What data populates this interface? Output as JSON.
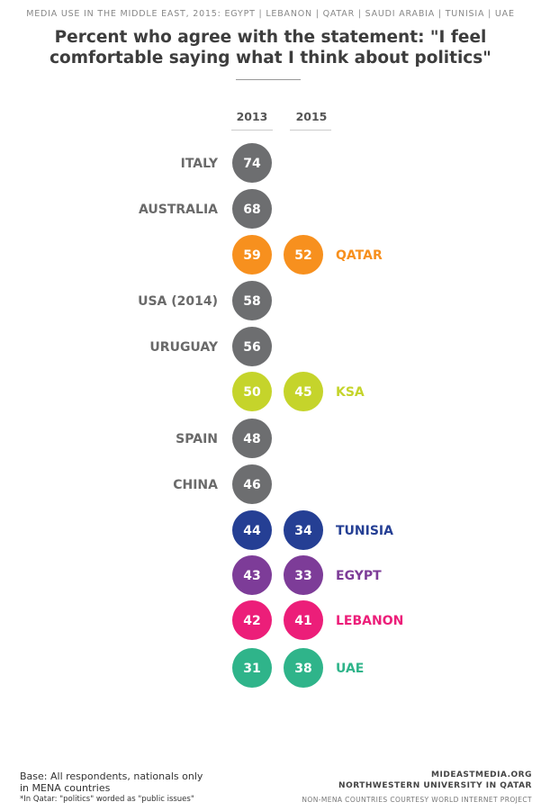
{
  "header": {
    "context": "MEDIA USE IN THE MIDDLE EAST, 2015: EGYPT | LEBANON | QATAR | SAUDI ARABIA | TUNISIA | UAE",
    "title_line1": "Percent who agree with the statement: \"I feel",
    "title_line2": "comfortable saying what I think about politics\""
  },
  "columns": [
    "2013",
    "2015"
  ],
  "colors": {
    "gray": "#6d6e70",
    "orange": "#f7901e",
    "lime": "#c5d42b",
    "navy": "#253f94",
    "purple": "#7d3c98",
    "pink": "#ec1e79",
    "teal": "#2fb48a"
  },
  "chart_data": {
    "type": "scatter",
    "title": "Percent who agree with the statement: \"I feel comfortable saying what I think about politics\"",
    "x_categories": [
      "2013",
      "2015"
    ],
    "rows": [
      {
        "label": "ITALY",
        "label_side": "left",
        "color": "gray",
        "v2013": 74,
        "v2015": null
      },
      {
        "label": "AUSTRALIA",
        "label_side": "left",
        "color": "gray",
        "v2013": 68,
        "v2015": null
      },
      {
        "label": "QATAR",
        "label_side": "right",
        "color": "orange",
        "v2013": 59,
        "v2015": 52
      },
      {
        "label": "USA (2014)",
        "label_side": "left",
        "color": "gray",
        "v2013": 58,
        "v2015": null
      },
      {
        "label": "URUGUAY",
        "label_side": "left",
        "color": "gray",
        "v2013": 56,
        "v2015": null
      },
      {
        "label": "KSA",
        "label_side": "right",
        "color": "lime",
        "v2013": 50,
        "v2015": 45
      },
      {
        "label": "SPAIN",
        "label_side": "left",
        "color": "gray",
        "v2013": 48,
        "v2015": null
      },
      {
        "label": "CHINA",
        "label_side": "left",
        "color": "gray",
        "v2013": 46,
        "v2015": null
      },
      {
        "label": "TUNISIA",
        "label_side": "right",
        "color": "navy",
        "v2013": 44,
        "v2015": 34
      },
      {
        "label": "EGYPT",
        "label_side": "right",
        "color": "purple",
        "v2013": 43,
        "v2015": 33
      },
      {
        "label": "LEBANON",
        "label_side": "right",
        "color": "pink",
        "v2013": 42,
        "v2015": 41
      },
      {
        "label": "UAE",
        "label_side": "right",
        "color": "teal",
        "v2013": 31,
        "v2015": 38
      }
    ]
  },
  "footer": {
    "base_line1": "Base: All respondents, nationals only",
    "base_line2": "in MENA countries",
    "note": "*In Qatar: \"politics\" worded as \"public issues\"",
    "site": "MIDEASTMEDIA.ORG",
    "org": "NORTHWESTERN UNIVERSITY IN QATAR",
    "courtesy": "NON-MENA COUNTRIES COURTESY WORLD INTERNET PROJECT"
  }
}
